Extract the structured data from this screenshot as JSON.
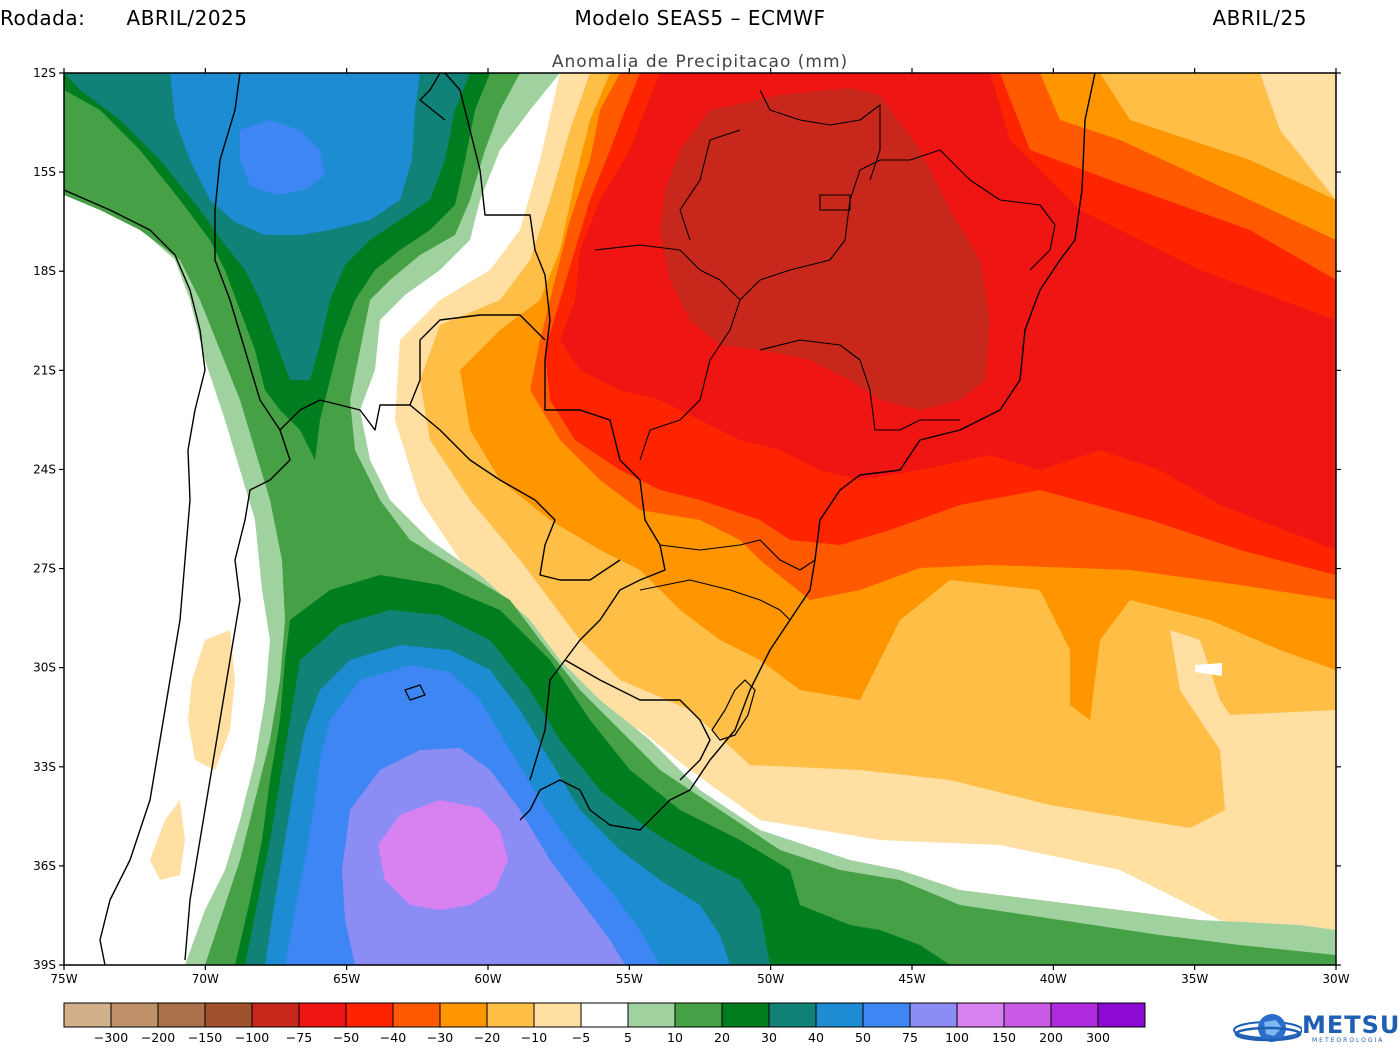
{
  "header": {
    "run_label": "Rodada:",
    "run_value": "ABRIL/2025",
    "model": "Modelo SEAS5 – ECMWF",
    "target": "ABRIL/25"
  },
  "title": "Anomalia de Precipitacao (mm)",
  "axes": {
    "lat_labels": [
      "12S",
      "15S",
      "18S",
      "21S",
      "24S",
      "27S",
      "30S",
      "33S",
      "36S",
      "39S"
    ],
    "lon_labels": [
      "75W",
      "70W",
      "65W",
      "60W",
      "55W",
      "50W",
      "45W",
      "40W",
      "35W",
      "30W"
    ]
  },
  "colorbar": {
    "colors": [
      "#d2b08a",
      "#be9168",
      "#a8714a",
      "#a0522d",
      "#c8281c",
      "#ee1512",
      "#ff2400",
      "#ff5a00",
      "#ff9600",
      "#ffbe46",
      "#ffdfa2",
      "#ffffff",
      "#a0d29f",
      "#46a046",
      "#007d1e",
      "#108277",
      "#1d8cd2",
      "#3e86f4",
      "#8c8cf5",
      "#d782f0",
      "#c85ae6",
      "#ae2adc",
      "#8c0ad2"
    ],
    "labels": [
      "-300",
      "-200",
      "-150",
      "-100",
      "-75",
      "-50",
      "-40",
      "-30",
      "-20",
      "-10",
      "-5",
      "5",
      "10",
      "20",
      "30",
      "40",
      "50",
      "75",
      "100",
      "150",
      "200",
      "300"
    ]
  },
  "logo": {
    "name": "METSUL",
    "sub": "METEOROLOGIA",
    "color": "#1e5fb4"
  },
  "regions": {
    "dry_core": "ff2400 / c8281c over central Brazil",
    "wet_core": "d782f0 over central Argentina"
  }
}
